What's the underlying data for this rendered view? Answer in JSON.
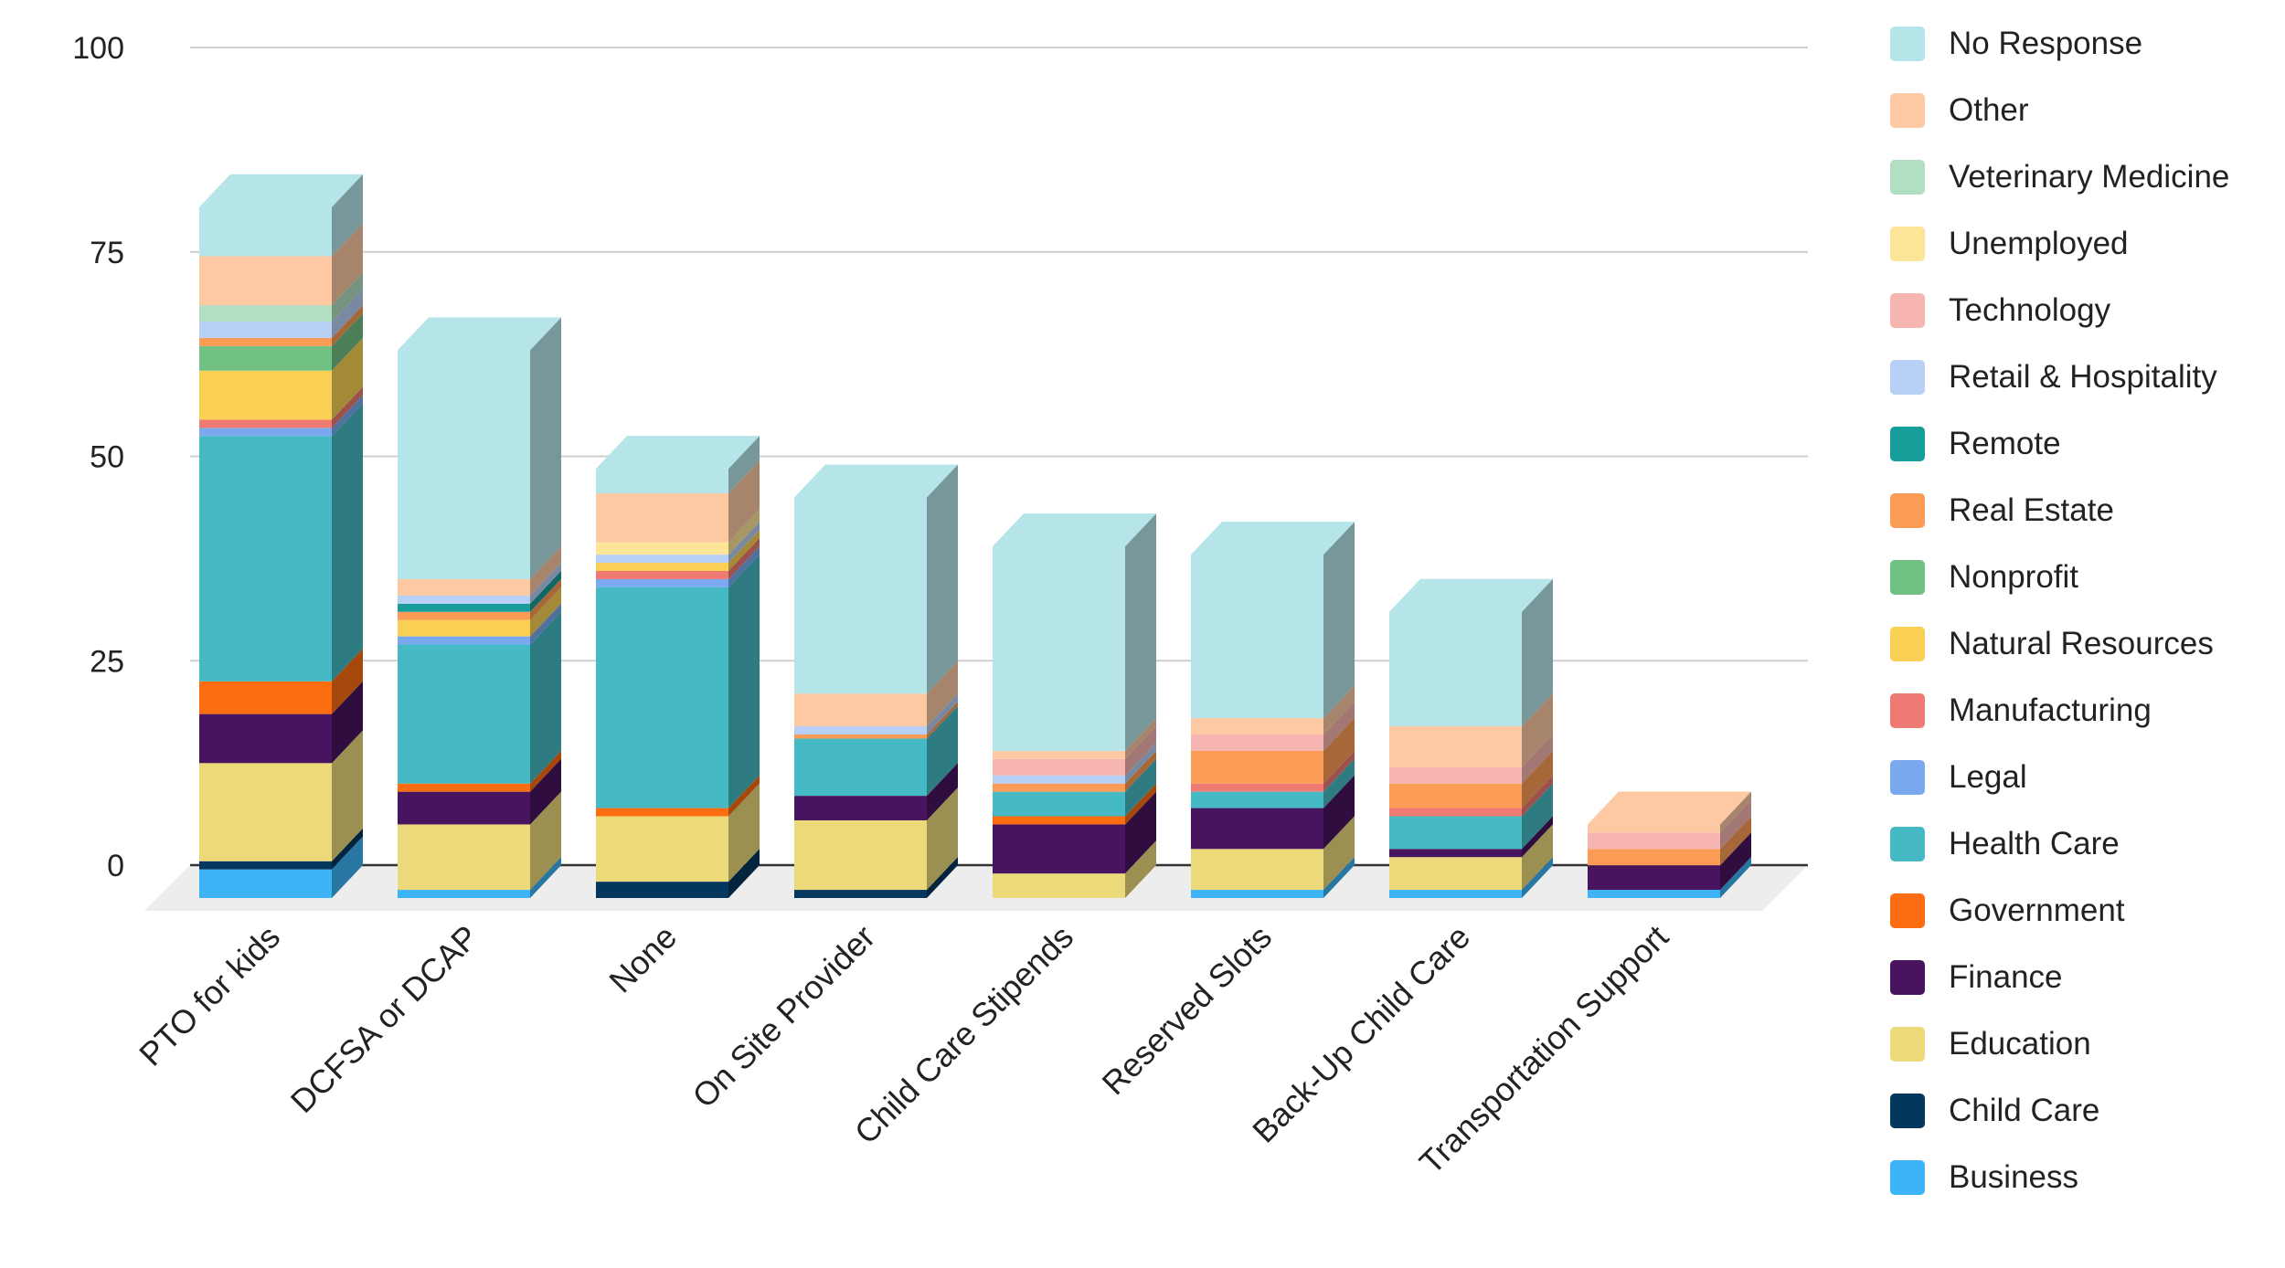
{
  "chart_data": {
    "type": "bar",
    "stacked": true,
    "three_d": true,
    "categories": [
      "PTO for kids",
      "DCFSA or DCAP",
      "None",
      "On Site Provider",
      "Child Care Stipends",
      "Reserved Slots",
      "Back-Up Child Care",
      "Transportation Support"
    ],
    "yticks": [
      "0",
      "25",
      "50",
      "75",
      "100"
    ],
    "ylim": [
      0,
      100
    ],
    "grid": true,
    "legend_position": "right",
    "series": [
      {
        "name": "Business",
        "color": "#3db4f7",
        "values": [
          3.5,
          1,
          0,
          0,
          0,
          1,
          1,
          1
        ]
      },
      {
        "name": "Child Care",
        "color": "#04375e",
        "values": [
          1,
          0,
          2,
          1,
          0,
          0,
          0,
          0
        ]
      },
      {
        "name": "Education",
        "color": "#ebd97a",
        "values": [
          12,
          8,
          8,
          8.5,
          3,
          5,
          4,
          0
        ]
      },
      {
        "name": "Finance",
        "color": "#48135f",
        "values": [
          6,
          4,
          0,
          3,
          6,
          5,
          1,
          3
        ]
      },
      {
        "name": "Government",
        "color": "#fb6d10",
        "values": [
          4,
          1,
          1,
          0,
          1,
          0,
          0,
          0
        ]
      },
      {
        "name": "Health Care",
        "color": "#46bac4",
        "values": [
          30,
          17,
          27,
          7,
          3,
          2,
          4,
          0
        ]
      },
      {
        "name": "Legal",
        "color": "#7aa9ef",
        "values": [
          1,
          1,
          1,
          0,
          0,
          0,
          0,
          0
        ]
      },
      {
        "name": "Manufacturing",
        "color": "#ee7a73",
        "values": [
          1,
          0,
          1,
          0,
          0,
          1,
          1,
          0
        ]
      },
      {
        "name": "Natural Resources",
        "color": "#f9d053",
        "values": [
          6,
          2,
          1,
          0,
          0,
          0,
          0,
          0
        ]
      },
      {
        "name": "Nonprofit",
        "color": "#71c184",
        "values": [
          3,
          0,
          0,
          0,
          0,
          0,
          0,
          0
        ]
      },
      {
        "name": "Real Estate",
        "color": "#fb9c56",
        "values": [
          1,
          1,
          0,
          0.5,
          1,
          4,
          3,
          2
        ]
      },
      {
        "name": "Remote",
        "color": "#189e9a",
        "values": [
          0,
          1,
          0,
          0,
          0,
          0,
          0,
          0
        ]
      },
      {
        "name": "Retail & Hospitality",
        "color": "#b8cff6",
        "values": [
          2,
          1,
          1,
          1,
          1,
          0,
          0,
          0
        ]
      },
      {
        "name": "Technology",
        "color": "#f6b5b0",
        "values": [
          0,
          0,
          0,
          0,
          2,
          2,
          2,
          2
        ]
      },
      {
        "name": "Unemployed",
        "color": "#fce597",
        "values": [
          0,
          0,
          1.5,
          0,
          0,
          0,
          0,
          0
        ]
      },
      {
        "name": "Veterinary Medicine",
        "color": "#b2dfc1",
        "values": [
          2,
          0,
          0,
          0,
          0,
          0,
          0,
          0
        ]
      },
      {
        "name": "Other",
        "color": "#fdc9a3",
        "values": [
          6,
          2,
          6,
          4,
          1,
          2,
          5,
          1
        ]
      },
      {
        "name": "No Response",
        "color": "#b5e5e9",
        "values": [
          6,
          28,
          3,
          24,
          25,
          20,
          14,
          0
        ]
      }
    ]
  }
}
